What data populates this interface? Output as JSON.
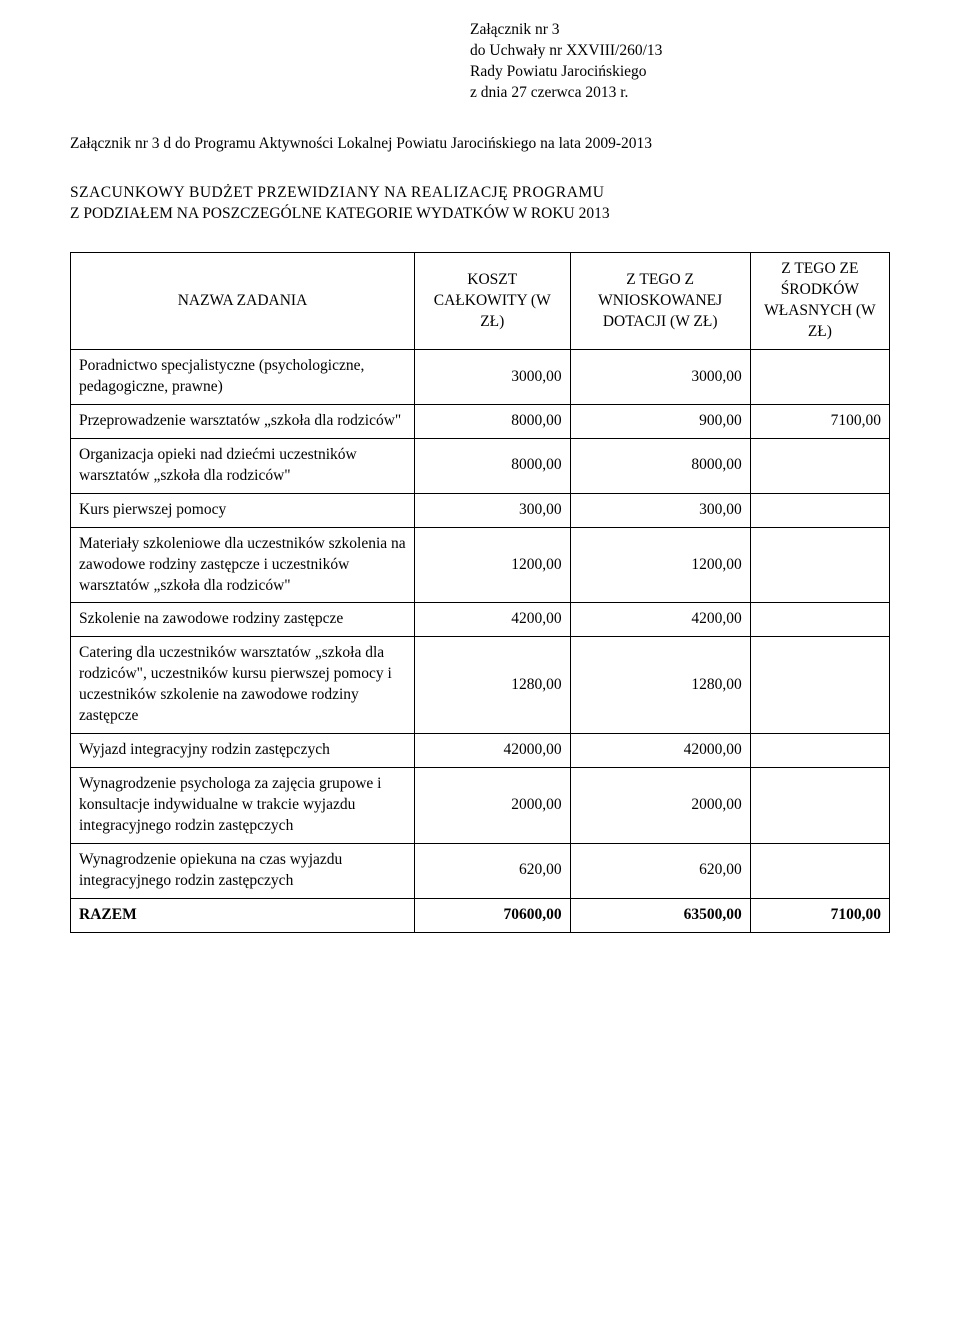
{
  "header": {
    "line1": "Załącznik nr 3",
    "line2": "do Uchwały nr XXVIII/260/13",
    "line3": "Rady Powiatu Jarocińskiego",
    "line4": "z dnia 27 czerwca 2013 r."
  },
  "intro": "Załącznik nr 3 d do Programu Aktywności Lokalnej Powiatu Jarocińskiego na lata 2009-2013",
  "budget_title": {
    "line1": "SZACUNKOWY  BUDŻET  PRZEWIDZIANY  NA  REALIZACJĘ  PROGRAMU",
    "line2": "Z PODZIAŁEM NA POSZCZEGÓLNE KATEGORIE WYDATKÓW W ROKU 2013"
  },
  "table": {
    "columns": [
      "NAZWA ZADANIA",
      "KOSZT CAŁKOWITY (W ZŁ)",
      "Z TEGO Z WNIOSKOWANEJ DOTACJI (W ZŁ)",
      "Z TEGO ZE ŚRODKÓW WŁASNYCH (W ZŁ)"
    ],
    "rows": [
      {
        "name": "Poradnictwo specjalistyczne (psychologiczne, pedagogiczne, prawne)",
        "cost": "3000,00",
        "grant": "3000,00",
        "own": ""
      },
      {
        "name": "Przeprowadzenie warsztatów „szkoła dla rodziców\"",
        "cost": "8000,00",
        "grant": "900,00",
        "own": "7100,00"
      },
      {
        "name": "Organizacja opieki nad dziećmi uczestników warsztatów „szkoła dla rodziców\"",
        "cost": "8000,00",
        "grant": "8000,00",
        "own": ""
      },
      {
        "name": "Kurs pierwszej pomocy",
        "cost": "300,00",
        "grant": "300,00",
        "own": ""
      },
      {
        "name": "Materiały szkoleniowe dla uczestników szkolenia na zawodowe rodziny zastępcze i  uczestników warsztatów „szkoła dla rodziców\"",
        "cost": "1200,00",
        "grant": "1200,00",
        "own": ""
      },
      {
        "name": "Szkolenie na zawodowe rodziny zastępcze",
        "cost": "4200,00",
        "grant": "4200,00",
        "own": ""
      },
      {
        "name": "Catering dla uczestników warsztatów „szkoła dla rodziców\", uczestników kursu pierwszej pomocy i uczestników szkolenie na zawodowe rodziny zastępcze",
        "cost": "1280,00",
        "grant": "1280,00",
        "own": ""
      },
      {
        "name": "Wyjazd integracyjny rodzin zastępczych",
        "cost": "42000,00",
        "grant": "42000,00",
        "own": ""
      },
      {
        "name": "Wynagrodzenie psychologa za zajęcia grupowe i konsultacje indywidualne w trakcie wyjazdu integracyjnego rodzin zastępczych",
        "cost": "2000,00",
        "grant": "2000,00",
        "own": ""
      },
      {
        "name": "Wynagrodzenie opiekuna na czas wyjazdu integracyjnego rodzin zastępczych",
        "cost": "620,00",
        "grant": "620,00",
        "own": ""
      }
    ],
    "total": {
      "name": "RAZEM",
      "cost": "70600,00",
      "grant": "63500,00",
      "own": "7100,00"
    }
  }
}
